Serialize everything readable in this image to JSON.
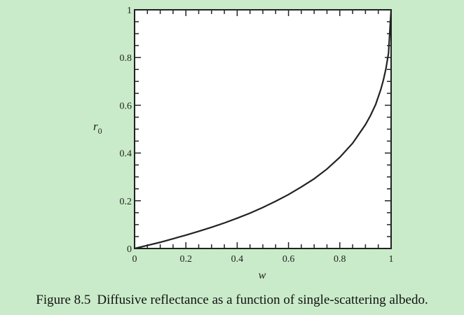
{
  "caption": {
    "label": "Figure 8.5",
    "text": "Diffusive reflectance as a function of single-scattering albedo."
  },
  "chart_data": {
    "type": "line",
    "xlabel": "w",
    "ylabel": "r",
    "ylabel_sub": "0",
    "xlim": [
      0,
      1
    ],
    "ylim": [
      0,
      1
    ],
    "x_ticks": [
      {
        "value": 0,
        "label": "0"
      },
      {
        "value": 0.2,
        "label": "0.2"
      },
      {
        "value": 0.4,
        "label": "0.4"
      },
      {
        "value": 0.6,
        "label": "0.6"
      },
      {
        "value": 0.8,
        "label": "0.8"
      },
      {
        "value": 1,
        "label": "1"
      }
    ],
    "y_ticks": [
      {
        "value": 0,
        "label": "0"
      },
      {
        "value": 0.2,
        "label": "0.2"
      },
      {
        "value": 0.4,
        "label": "0.4"
      },
      {
        "value": 0.6,
        "label": "0.6"
      },
      {
        "value": 0.8,
        "label": "0.8"
      },
      {
        "value": 1,
        "label": "1"
      }
    ],
    "grid": false,
    "series": [
      {
        "x": [
          0,
          0.05,
          0.1,
          0.15,
          0.2,
          0.25,
          0.3,
          0.35,
          0.4,
          0.45,
          0.5,
          0.55,
          0.6,
          0.65,
          0.7,
          0.75,
          0.8,
          0.85,
          0.9,
          0.92,
          0.94,
          0.96,
          0.97,
          0.98,
          0.99,
          1.0
        ],
        "y": [
          0,
          0.013,
          0.026,
          0.041,
          0.056,
          0.072,
          0.089,
          0.107,
          0.127,
          0.148,
          0.172,
          0.198,
          0.226,
          0.258,
          0.292,
          0.333,
          0.382,
          0.441,
          0.519,
          0.558,
          0.604,
          0.667,
          0.706,
          0.754,
          0.819,
          1.0
        ]
      }
    ]
  },
  "colors": {
    "background": "#c9ebc9",
    "plot": "#ffffff",
    "ink": "#222222"
  }
}
